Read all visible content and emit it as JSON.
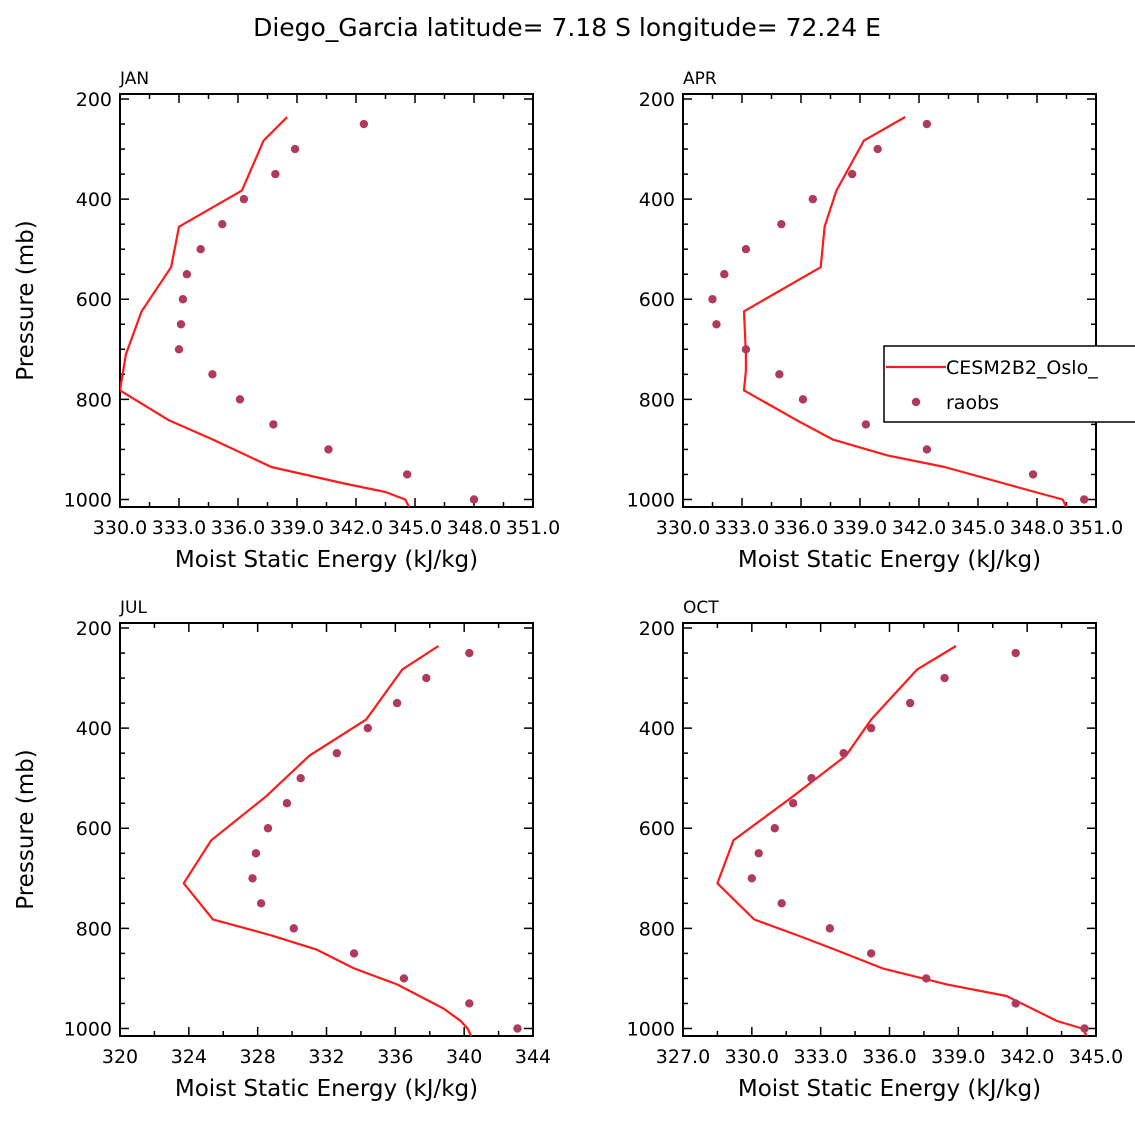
{
  "title": "Diego_Garcia  latitude= 7.18 S longitude= 72.24 E",
  "legend": {
    "model_label": "CESM2B2_Oslo_",
    "obs_label": "raobs"
  },
  "colors": {
    "model": "#ff1a1a",
    "obs": "#b03a5b",
    "axis": "#000000",
    "background": "#ffffff"
  },
  "chart_data": [
    {
      "type": "line",
      "panel": "JAN",
      "position": "top-left",
      "xlabel": "Moist Static Energy (kJ/kg)",
      "ylabel": "Pressure (mb)",
      "xlim": [
        330,
        351
      ],
      "ylim": [
        1000,
        200
      ],
      "xticks": [
        330,
        333,
        336,
        339,
        342,
        345,
        348,
        351
      ],
      "xtick_labels": [
        "330.0",
        "333.0",
        "336.0",
        "339.0",
        "342.0",
        "345.0",
        "348.0",
        "351.0"
      ],
      "yticks": [
        200,
        400,
        600,
        800,
        1000
      ],
      "series": [
        {
          "name": "CESM2B2_Oslo_",
          "style": "line",
          "x": [
            338.5,
            337.3,
            336.2,
            333.0,
            332.6,
            331.1,
            330.3,
            330.0,
            332.5,
            334.7,
            337.7,
            341.4,
            343.5,
            344.5,
            344.7
          ],
          "y": [
            236,
            283,
            383,
            455,
            536,
            624,
            710,
            782,
            842,
            880,
            935,
            968,
            985,
            1000,
            1015
          ]
        },
        {
          "name": "raobs",
          "style": "points",
          "x": [
            342.4,
            338.9,
            337.9,
            336.3,
            335.2,
            334.1,
            333.4,
            333.2,
            333.1,
            333.0,
            334.7,
            336.1,
            337.8,
            340.6,
            344.6,
            348.0
          ],
          "y": [
            250,
            300,
            350,
            400,
            450,
            500,
            550,
            600,
            650,
            700,
            750,
            800,
            850,
            900,
            950,
            1000
          ]
        }
      ]
    },
    {
      "type": "line",
      "panel": "APR",
      "position": "top-right",
      "legend": "right",
      "xlabel": "Moist Static Energy (kJ/kg)",
      "ylabel": "",
      "xlim": [
        330,
        351
      ],
      "ylim": [
        1000,
        200
      ],
      "xticks": [
        330,
        333,
        336,
        339,
        342,
        345,
        348,
        351
      ],
      "xtick_labels": [
        "330.0",
        "333.0",
        "336.0",
        "339.0",
        "342.0",
        "345.0",
        "348.0",
        "351.0"
      ],
      "yticks": [
        200,
        400,
        600,
        800,
        1000
      ],
      "series": [
        {
          "name": "CESM2B2_Oslo_",
          "style": "line",
          "x": [
            341.3,
            339.2,
            337.8,
            337.2,
            337.0,
            333.1,
            333.2,
            333.2,
            333.1,
            335.8,
            337.6,
            340.4,
            343.3,
            347.9,
            349.3,
            349.5
          ],
          "y": [
            236,
            283,
            383,
            455,
            536,
            624,
            710,
            742,
            782,
            842,
            880,
            912,
            935,
            985,
            1000,
            1015
          ]
        },
        {
          "name": "raobs",
          "style": "points",
          "x": [
            342.4,
            339.9,
            338.6,
            336.6,
            335.0,
            333.2,
            332.1,
            331.5,
            331.7,
            333.2,
            334.9,
            336.1,
            339.3,
            342.4,
            347.8,
            350.4
          ],
          "y": [
            250,
            300,
            350,
            400,
            450,
            500,
            550,
            600,
            650,
            700,
            750,
            800,
            850,
            900,
            950,
            1000
          ]
        }
      ]
    },
    {
      "type": "line",
      "panel": "JUL",
      "position": "bottom-left",
      "xlabel": "Moist Static Energy (kJ/kg)",
      "ylabel": "Pressure (mb)",
      "xlim": [
        320,
        344
      ],
      "ylim": [
        1000,
        200
      ],
      "xticks": [
        320,
        324,
        328,
        332,
        336,
        340,
        344
      ],
      "xtick_labels": [
        "320",
        "324",
        "328",
        "332",
        "336",
        "340",
        "344"
      ],
      "yticks": [
        200,
        400,
        600,
        800,
        1000
      ],
      "series": [
        {
          "name": "CESM2B2_Oslo_",
          "style": "line",
          "x": [
            338.5,
            336.4,
            334.3,
            331.0,
            328.5,
            325.3,
            323.7,
            325.4,
            328.8,
            331.4,
            333.6,
            336.1,
            338.8,
            339.8,
            340.2,
            340.4
          ],
          "y": [
            236,
            283,
            383,
            455,
            536,
            624,
            710,
            782,
            814,
            842,
            880,
            912,
            960,
            985,
            1000,
            1015
          ]
        },
        {
          "name": "raobs",
          "style": "points",
          "x": [
            340.3,
            337.8,
            336.1,
            334.4,
            332.6,
            330.5,
            329.7,
            328.6,
            327.9,
            327.7,
            328.2,
            330.1,
            333.6,
            336.5,
            340.3,
            343.1
          ],
          "y": [
            250,
            300,
            350,
            400,
            450,
            500,
            550,
            600,
            650,
            700,
            750,
            800,
            850,
            900,
            950,
            1000
          ]
        }
      ]
    },
    {
      "type": "line",
      "panel": "OCT",
      "position": "bottom-right",
      "xlabel": "Moist Static Energy (kJ/kg)",
      "ylabel": "",
      "xlim": [
        327,
        345
      ],
      "ylim": [
        1000,
        200
      ],
      "xticks": [
        327,
        330,
        333,
        336,
        339,
        342,
        345
      ],
      "xtick_labels": [
        "327.0",
        "330.0",
        "333.0",
        "336.0",
        "339.0",
        "342.0",
        "345.0"
      ],
      "yticks": [
        200,
        400,
        600,
        800,
        1000
      ],
      "series": [
        {
          "name": "CESM2B2_Oslo_",
          "style": "line",
          "x": [
            338.9,
            337.2,
            335.2,
            334.1,
            331.8,
            329.2,
            328.5,
            330.1,
            332.0,
            333.6,
            335.7,
            338.5,
            341.1,
            343.3,
            344.4,
            344.6
          ],
          "y": [
            236,
            283,
            383,
            455,
            536,
            624,
            710,
            782,
            814,
            842,
            880,
            912,
            935,
            985,
            1000,
            1015
          ]
        },
        {
          "name": "raobs",
          "style": "points",
          "x": [
            341.5,
            338.4,
            336.9,
            335.2,
            334.0,
            332.6,
            331.8,
            331.0,
            330.3,
            330.0,
            331.3,
            333.4,
            335.2,
            337.6,
            341.5,
            344.5
          ],
          "y": [
            250,
            300,
            350,
            400,
            450,
            500,
            550,
            600,
            650,
            700,
            750,
            800,
            850,
            900,
            950,
            1000
          ]
        }
      ]
    }
  ]
}
